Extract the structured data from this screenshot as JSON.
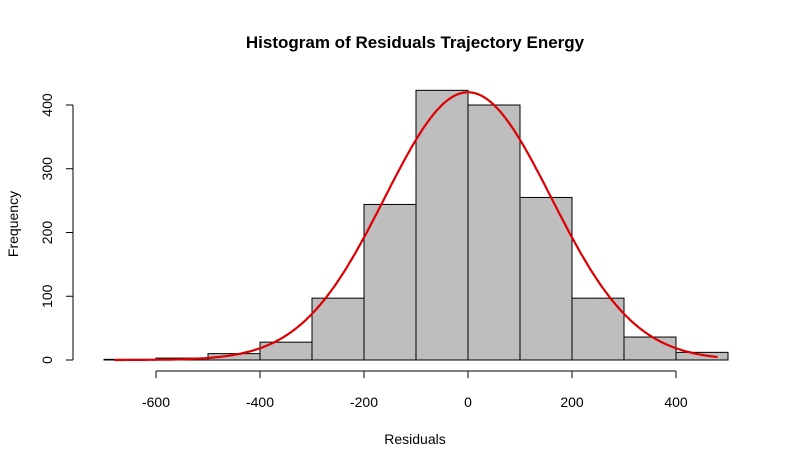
{
  "chart_data": {
    "type": "bar",
    "title": "Histogram of Residuals Trajectory Energy",
    "xlabel": "Residuals",
    "ylabel": "Frequency",
    "xlim": [
      -700,
      500
    ],
    "ylim": [
      0,
      400
    ],
    "x_ticks": [
      -600,
      -400,
      -200,
      0,
      200,
      400
    ],
    "y_ticks": [
      0,
      100,
      200,
      300,
      400
    ],
    "x_tick_labels": [
      "-600",
      "-400",
      "-200",
      "0",
      "200",
      "400"
    ],
    "y_tick_labels": [
      "0",
      "100",
      "200",
      "300",
      "400"
    ],
    "grid": false,
    "bins": [
      {
        "start": -700,
        "end": -600,
        "count": 1
      },
      {
        "start": -600,
        "end": -500,
        "count": 3
      },
      {
        "start": -500,
        "end": -400,
        "count": 10
      },
      {
        "start": -400,
        "end": -300,
        "count": 28
      },
      {
        "start": -300,
        "end": -200,
        "count": 97
      },
      {
        "start": -200,
        "end": -100,
        "count": 244
      },
      {
        "start": -100,
        "end": 0,
        "count": 423
      },
      {
        "start": 0,
        "end": 100,
        "count": 400
      },
      {
        "start": 100,
        "end": 200,
        "count": 255
      },
      {
        "start": 200,
        "end": 300,
        "count": 97
      },
      {
        "start": 300,
        "end": 400,
        "count": 36
      },
      {
        "start": 400,
        "end": 500,
        "count": 12
      }
    ],
    "bar_color": "#bebebe",
    "bar_edge_color": "#000000",
    "density_curve": {
      "type": "normal",
      "mean": 0,
      "sd": 160,
      "peak": 420,
      "x_range": [
        -680,
        480
      ],
      "color": "#dd0000"
    }
  }
}
